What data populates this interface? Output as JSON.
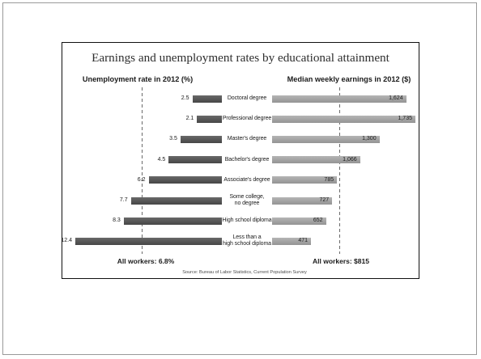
{
  "chart_data": {
    "type": "bar",
    "orientation": "horizontal",
    "title": "Earnings and unemployment rates by educational attainment",
    "categories": [
      "Doctoral degree",
      "Professional degree",
      "Master's degree",
      "Bachelor's degree",
      "Associate's degree",
      "Some college,\nno degree",
      "High school diploma",
      "Less than a\nhigh school diploma"
    ],
    "series": [
      {
        "name": "Unemployment rate in 2012 (%)",
        "values": [
          2.5,
          2.1,
          3.5,
          4.5,
          6.2,
          7.7,
          8.3,
          12.4
        ],
        "labels": [
          "2.5",
          "2.1",
          "3.5",
          "4.5",
          "6.2",
          "7.7",
          "8.3",
          "12.4"
        ],
        "color": "#505050",
        "reference_value": 6.8,
        "reference_label": "All workers: 6.8%"
      },
      {
        "name": "Median weekly earnings in 2012 ($)",
        "values": [
          1624,
          1735,
          1300,
          1066,
          785,
          727,
          652,
          471
        ],
        "labels": [
          "1,624",
          "1,735",
          "1,300",
          "1,066",
          "785",
          "727",
          "652",
          "471"
        ],
        "color": "#a8a8a8",
        "reference_value": 815,
        "reference_label": "All workers: $815"
      }
    ],
    "source": "Source: Bureau of Labor Statistics, Current Population Survey",
    "grid": false,
    "legend": "none"
  }
}
